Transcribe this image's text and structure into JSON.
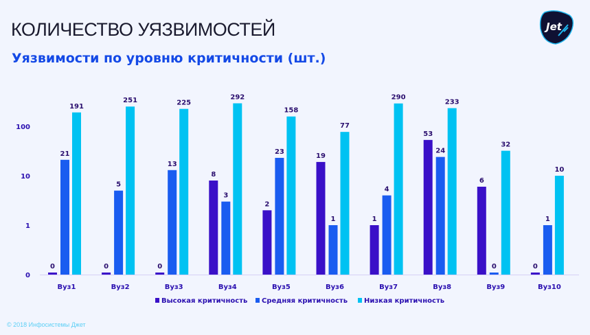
{
  "header": {
    "title": "КОЛИЧЕСТВО УЯЗВИМОСТЕЙ",
    "logo_text": "Jet"
  },
  "footer": {
    "copyright": "© 2018 Инфосистемы Джет"
  },
  "chart_data": {
    "type": "bar",
    "title": "Уязвимости по уровню критичности (шт.)",
    "xlabel": "",
    "ylabel": "",
    "yscale": "log",
    "yticks": [
      "0",
      "1",
      "10",
      "100"
    ],
    "categories": [
      "Вуз1",
      "Вуз2",
      "Вуз3",
      "Вуз4",
      "Вуз5",
      "Вуз6",
      "Вуз7",
      "Вуз8",
      "Вуз9",
      "Вуз10"
    ],
    "series": [
      {
        "name": "Высокая критичность",
        "color": "#3a10c8",
        "values": [
          0,
          0,
          0,
          8,
          2,
          19,
          1,
          53,
          6,
          0
        ]
      },
      {
        "name": "Средняя критичность",
        "color": "#1a5cf0",
        "values": [
          21,
          5,
          13,
          3,
          23,
          1,
          4,
          24,
          0,
          1
        ]
      },
      {
        "name": "Низкая критичность",
        "color": "#00c2f2",
        "values": [
          191,
          251,
          225,
          292,
          158,
          77,
          290,
          233,
          32,
          10
        ]
      }
    ],
    "legend_position": "bottom",
    "grid": false
  }
}
